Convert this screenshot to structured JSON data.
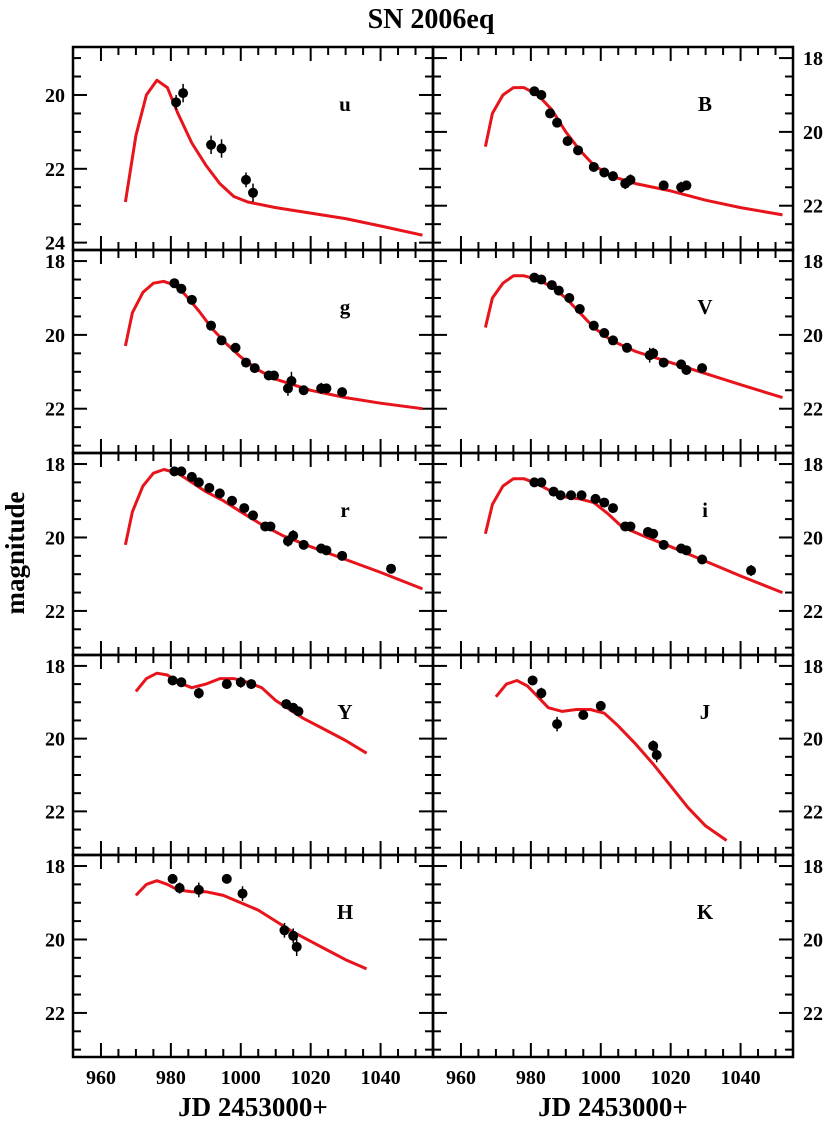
{
  "title": "SN 2006eq",
  "ylabel": "magnitude",
  "xlabel_left": "JD 2453000+",
  "xlabel_right": "JD 2453000+",
  "colors": {
    "model": "#e8141c",
    "points": "#000000",
    "frame": "#000000"
  },
  "chart_data": {
    "type": "scatter",
    "xlim": [
      952,
      1055
    ],
    "x_ticks": [
      960,
      980,
      1000,
      1020,
      1040
    ],
    "y_ticks": [
      18,
      20,
      22,
      24
    ],
    "inverted_y": true,
    "panels": [
      {
        "band": "u",
        "ylim": [
          18.7,
          24.2
        ],
        "points": [
          [
            981.5,
            20.2,
            0.2
          ],
          [
            983.5,
            19.95,
            0.25
          ],
          [
            991.5,
            21.35,
            0.25
          ],
          [
            994.5,
            21.45,
            0.25
          ],
          [
            1001.5,
            22.3,
            0.2
          ],
          [
            1003.5,
            22.65,
            0.25
          ]
        ],
        "model": [
          [
            967,
            22.9
          ],
          [
            970,
            21.1
          ],
          [
            973,
            20.0
          ],
          [
            976,
            19.6
          ],
          [
            979,
            19.8
          ],
          [
            982,
            20.5
          ],
          [
            986,
            21.3
          ],
          [
            990,
            21.9
          ],
          [
            994,
            22.4
          ],
          [
            998,
            22.75
          ],
          [
            1002,
            22.9
          ],
          [
            1010,
            23.05
          ],
          [
            1020,
            23.2
          ],
          [
            1030,
            23.35
          ],
          [
            1040,
            23.55
          ],
          [
            1052,
            23.8
          ]
        ]
      },
      {
        "band": "B",
        "ylim": [
          17.7,
          23.2
        ],
        "points": [
          [
            981,
            18.9,
            0.1
          ],
          [
            983,
            19.0,
            0.1
          ],
          [
            985.5,
            19.5,
            0.1
          ],
          [
            987.5,
            19.75,
            0.1
          ],
          [
            990.5,
            20.25,
            0.1
          ],
          [
            993.5,
            20.5,
            0.1
          ],
          [
            998,
            20.95,
            0.1
          ],
          [
            1001,
            21.1,
            0.1
          ],
          [
            1003.5,
            21.2,
            0.1
          ],
          [
            1007,
            21.4,
            0.15
          ],
          [
            1008.5,
            21.3,
            0.15
          ],
          [
            1018,
            21.45,
            0.1
          ],
          [
            1023,
            21.5,
            0.15
          ],
          [
            1024.5,
            21.45,
            0.1
          ]
        ],
        "model": [
          [
            967,
            20.4
          ],
          [
            969,
            19.5
          ],
          [
            972,
            19.0
          ],
          [
            975,
            18.8
          ],
          [
            978,
            18.8
          ],
          [
            982,
            19.0
          ],
          [
            986,
            19.4
          ],
          [
            990,
            20.0
          ],
          [
            994,
            20.5
          ],
          [
            998,
            20.9
          ],
          [
            1003,
            21.2
          ],
          [
            1010,
            21.4
          ],
          [
            1020,
            21.6
          ],
          [
            1030,
            21.85
          ],
          [
            1040,
            22.05
          ],
          [
            1052,
            22.25
          ]
        ]
      },
      {
        "band": "g",
        "ylim": [
          17.7,
          23.2
        ],
        "points": [
          [
            981,
            18.6,
            0.1
          ],
          [
            983,
            18.75,
            0.1
          ],
          [
            986,
            19.05,
            0.1
          ],
          [
            991.5,
            19.75,
            0.1
          ],
          [
            994.5,
            20.15,
            0.1
          ],
          [
            998.5,
            20.35,
            0.1
          ],
          [
            1001.5,
            20.75,
            0.1
          ],
          [
            1004,
            20.9,
            0.1
          ],
          [
            1008,
            21.1,
            0.1
          ],
          [
            1009.5,
            21.1,
            0.1
          ],
          [
            1013.5,
            21.45,
            0.2
          ],
          [
            1014.5,
            21.25,
            0.25
          ],
          [
            1018,
            21.5,
            0.1
          ],
          [
            1023,
            21.45,
            0.15
          ],
          [
            1024.5,
            21.45,
            0.1
          ],
          [
            1029,
            21.55,
            0.1
          ]
        ],
        "model": [
          [
            967,
            20.3
          ],
          [
            969,
            19.4
          ],
          [
            972,
            18.85
          ],
          [
            975,
            18.6
          ],
          [
            978,
            18.55
          ],
          [
            981,
            18.65
          ],
          [
            984,
            18.9
          ],
          [
            988,
            19.35
          ],
          [
            992,
            19.85
          ],
          [
            996,
            20.25
          ],
          [
            1000,
            20.6
          ],
          [
            1005,
            20.95
          ],
          [
            1010,
            21.2
          ],
          [
            1020,
            21.5
          ],
          [
            1030,
            21.7
          ],
          [
            1040,
            21.85
          ],
          [
            1052,
            22.0
          ]
        ]
      },
      {
        "band": "V",
        "ylim": [
          17.7,
          23.2
        ],
        "points": [
          [
            981,
            18.45,
            0.1
          ],
          [
            983,
            18.5,
            0.1
          ],
          [
            986,
            18.65,
            0.1
          ],
          [
            988,
            18.8,
            0.1
          ],
          [
            991,
            19.0,
            0.1
          ],
          [
            994,
            19.3,
            0.1
          ],
          [
            998,
            19.75,
            0.1
          ],
          [
            1001,
            19.95,
            0.1
          ],
          [
            1003.5,
            20.15,
            0.1
          ],
          [
            1007.5,
            20.35,
            0.1
          ],
          [
            1014,
            20.55,
            0.2
          ],
          [
            1015,
            20.5,
            0.15
          ],
          [
            1018,
            20.75,
            0.1
          ],
          [
            1023,
            20.8,
            0.1
          ],
          [
            1024.5,
            20.95,
            0.1
          ],
          [
            1029,
            20.9,
            0.1
          ]
        ],
        "model": [
          [
            967,
            19.8
          ],
          [
            969,
            19.0
          ],
          [
            972,
            18.6
          ],
          [
            975,
            18.4
          ],
          [
            978,
            18.4
          ],
          [
            982,
            18.5
          ],
          [
            986,
            18.7
          ],
          [
            990,
            19.0
          ],
          [
            994,
            19.4
          ],
          [
            998,
            19.8
          ],
          [
            1003,
            20.15
          ],
          [
            1010,
            20.45
          ],
          [
            1020,
            20.75
          ],
          [
            1030,
            21.05
          ],
          [
            1040,
            21.35
          ],
          [
            1052,
            21.7
          ]
        ]
      },
      {
        "band": "r",
        "ylim": [
          17.7,
          23.2
        ],
        "points": [
          [
            981,
            18.2,
            0.1
          ],
          [
            983,
            18.2,
            0.1
          ],
          [
            986,
            18.35,
            0.1
          ],
          [
            988,
            18.5,
            0.1
          ],
          [
            991,
            18.65,
            0.1
          ],
          [
            994,
            18.8,
            0.1
          ],
          [
            997.5,
            19.0,
            0.1
          ],
          [
            1001,
            19.2,
            0.1
          ],
          [
            1003.5,
            19.4,
            0.1
          ],
          [
            1007,
            19.7,
            0.1
          ],
          [
            1008.5,
            19.7,
            0.1
          ],
          [
            1013.5,
            20.1,
            0.15
          ],
          [
            1015,
            19.95,
            0.15
          ],
          [
            1018,
            20.2,
            0.1
          ],
          [
            1023,
            20.3,
            0.1
          ],
          [
            1024.5,
            20.35,
            0.1
          ],
          [
            1029,
            20.5,
            0.1
          ],
          [
            1043,
            20.85,
            0.1
          ]
        ],
        "model": [
          [
            967,
            20.2
          ],
          [
            969,
            19.3
          ],
          [
            972,
            18.6
          ],
          [
            975,
            18.25
          ],
          [
            978,
            18.15
          ],
          [
            982,
            18.25
          ],
          [
            986,
            18.5
          ],
          [
            990,
            18.75
          ],
          [
            995,
            19.0
          ],
          [
            1000,
            19.3
          ],
          [
            1006,
            19.65
          ],
          [
            1012,
            19.95
          ],
          [
            1020,
            20.25
          ],
          [
            1030,
            20.6
          ],
          [
            1040,
            20.95
          ],
          [
            1052,
            21.4
          ]
        ]
      },
      {
        "band": "i",
        "ylim": [
          17.7,
          23.2
        ],
        "points": [
          [
            981,
            18.5,
            0.1
          ],
          [
            983,
            18.5,
            0.1
          ],
          [
            986.5,
            18.75,
            0.1
          ],
          [
            988.5,
            18.85,
            0.1
          ],
          [
            991.5,
            18.85,
            0.1
          ],
          [
            994.5,
            18.85,
            0.1
          ],
          [
            998.5,
            18.95,
            0.1
          ],
          [
            1001,
            19.05,
            0.1
          ],
          [
            1003.5,
            19.2,
            0.1
          ],
          [
            1007,
            19.7,
            0.1
          ],
          [
            1008.5,
            19.7,
            0.1
          ],
          [
            1013.5,
            19.85,
            0.1
          ],
          [
            1015,
            19.9,
            0.1
          ],
          [
            1018,
            20.2,
            0.1
          ],
          [
            1023,
            20.3,
            0.1
          ],
          [
            1024.5,
            20.35,
            0.1
          ],
          [
            1029,
            20.6,
            0.1
          ],
          [
            1043,
            20.9,
            0.15
          ]
        ],
        "model": [
          [
            967,
            19.9
          ],
          [
            969,
            19.1
          ],
          [
            972,
            18.6
          ],
          [
            975,
            18.4
          ],
          [
            978,
            18.4
          ],
          [
            982,
            18.55
          ],
          [
            986,
            18.75
          ],
          [
            990,
            18.9
          ],
          [
            994,
            18.95
          ],
          [
            998,
            19.05
          ],
          [
            1002,
            19.35
          ],
          [
            1006,
            19.7
          ],
          [
            1012,
            19.95
          ],
          [
            1020,
            20.25
          ],
          [
            1030,
            20.65
          ],
          [
            1040,
            21.05
          ],
          [
            1052,
            21.5
          ]
        ]
      },
      {
        "band": "Y",
        "ylim": [
          17.7,
          23.2
        ],
        "points": [
          [
            980.5,
            18.4,
            0.1
          ],
          [
            983,
            18.45,
            0.1
          ],
          [
            988,
            18.75,
            0.15
          ],
          [
            996,
            18.5,
            0.1
          ],
          [
            1000,
            18.45,
            0.15
          ],
          [
            1003,
            18.5,
            0.1
          ],
          [
            1013,
            19.05,
            0.1
          ],
          [
            1015,
            19.15,
            0.1
          ],
          [
            1016.5,
            19.25,
            0.1
          ]
        ],
        "model": [
          [
            970,
            18.7
          ],
          [
            973,
            18.35
          ],
          [
            976,
            18.2
          ],
          [
            979,
            18.25
          ],
          [
            982,
            18.45
          ],
          [
            986,
            18.6
          ],
          [
            990,
            18.5
          ],
          [
            994,
            18.35
          ],
          [
            998,
            18.35
          ],
          [
            1002,
            18.45
          ],
          [
            1006,
            18.6
          ],
          [
            1010,
            18.95
          ],
          [
            1014,
            19.2
          ],
          [
            1018,
            19.45
          ],
          [
            1024,
            19.75
          ],
          [
            1030,
            20.05
          ],
          [
            1036,
            20.4
          ]
        ]
      },
      {
        "band": "J",
        "ylim": [
          17.7,
          23.2
        ],
        "points": [
          [
            980.5,
            18.4,
            0.1
          ],
          [
            983,
            18.75,
            0.15
          ],
          [
            987.5,
            19.6,
            0.2
          ],
          [
            995,
            19.35,
            0.1
          ],
          [
            1000,
            19.1,
            0.1
          ],
          [
            1015,
            20.2,
            0.15
          ],
          [
            1016,
            20.45,
            0.2
          ]
        ],
        "model": [
          [
            970,
            18.85
          ],
          [
            973,
            18.5
          ],
          [
            976,
            18.4
          ],
          [
            979,
            18.55
          ],
          [
            982,
            18.85
          ],
          [
            985,
            19.15
          ],
          [
            989,
            19.25
          ],
          [
            993,
            19.2
          ],
          [
            997,
            19.2
          ],
          [
            1001,
            19.3
          ],
          [
            1005,
            19.65
          ],
          [
            1010,
            20.15
          ],
          [
            1015,
            20.7
          ],
          [
            1020,
            21.3
          ],
          [
            1025,
            21.9
          ],
          [
            1030,
            22.4
          ],
          [
            1036,
            22.8
          ]
        ]
      },
      {
        "band": "H",
        "ylim": [
          17.7,
          23.2
        ],
        "points": [
          [
            980.5,
            18.35,
            0.1
          ],
          [
            982.5,
            18.6,
            0.15
          ],
          [
            988,
            18.65,
            0.2
          ],
          [
            996,
            18.35,
            0.1
          ],
          [
            1000.5,
            18.75,
            0.2
          ],
          [
            1012.5,
            19.75,
            0.2
          ],
          [
            1015,
            19.9,
            0.2
          ],
          [
            1016,
            20.2,
            0.25
          ]
        ],
        "model": [
          [
            970,
            18.8
          ],
          [
            973,
            18.5
          ],
          [
            976,
            18.4
          ],
          [
            979,
            18.5
          ],
          [
            982,
            18.65
          ],
          [
            986,
            18.7
          ],
          [
            990,
            18.7
          ],
          [
            995,
            18.8
          ],
          [
            1000,
            19.0
          ],
          [
            1005,
            19.2
          ],
          [
            1010,
            19.5
          ],
          [
            1015,
            19.8
          ],
          [
            1020,
            20.05
          ],
          [
            1025,
            20.3
          ],
          [
            1030,
            20.55
          ],
          [
            1036,
            20.8
          ]
        ]
      },
      {
        "band": "K",
        "ylim": [
          17.7,
          23.2
        ],
        "points": [],
        "model": []
      }
    ]
  }
}
